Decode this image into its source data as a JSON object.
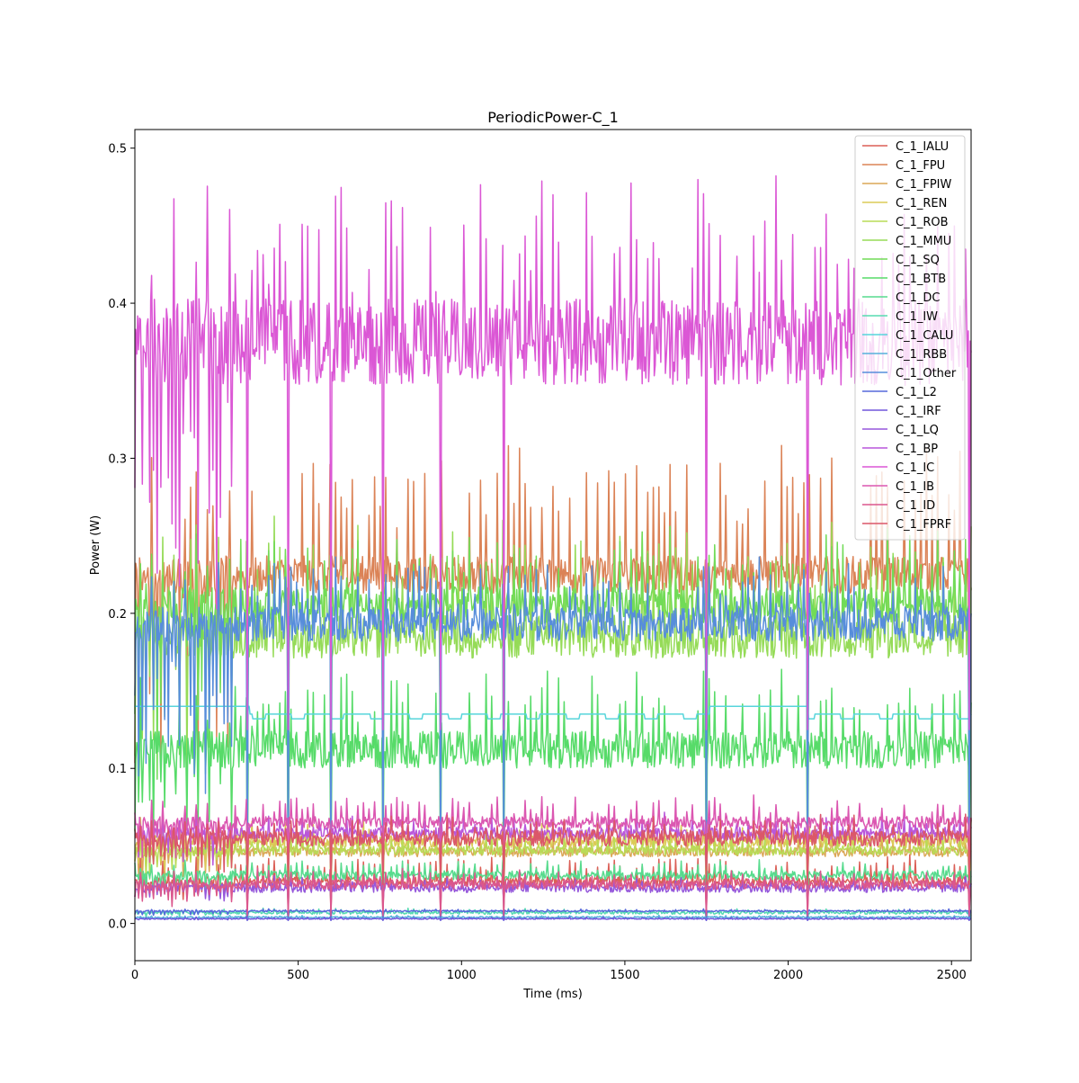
{
  "chart_data": {
    "type": "line",
    "title": "PeriodicPower-C_1",
    "xlabel": "Time (ms)",
    "ylabel": "Power (W)",
    "xlim": [
      0,
      2560
    ],
    "ylim": [
      -0.024,
      0.512
    ],
    "xticks": [
      0,
      500,
      1000,
      1500,
      2000,
      2500
    ],
    "yticks": [
      0.0,
      0.1,
      0.2,
      0.3,
      0.4,
      0.5
    ],
    "xtick_labels": [
      "0",
      "500",
      "1000",
      "1500",
      "2000",
      "2500"
    ],
    "ytick_labels": [
      "0.0",
      "0.1",
      "0.2",
      "0.3",
      "0.4",
      "0.5"
    ],
    "grid": false,
    "legend_position": "top-right",
    "series": [
      {
        "name": "C_1_IALU",
        "color": "#db5f57",
        "base": 0.027,
        "noise": 0.003,
        "spike": 0.015,
        "drop": 0.02
      },
      {
        "name": "C_1_FPU",
        "color": "#db8357",
        "base": 0.225,
        "noise": 0.012,
        "spike": 0.075,
        "drop": 0.2
      },
      {
        "name": "C_1_FPIW",
        "color": "#dba757",
        "base": 0.046,
        "noise": 0.003,
        "spike": 0.01,
        "drop": 0.03
      },
      {
        "name": "C_1_REN",
        "color": "#dbcb57",
        "base": 0.053,
        "noise": 0.004,
        "spike": 0.012,
        "drop": 0.03
      },
      {
        "name": "C_1_ROB",
        "color": "#b9db57",
        "base": 0.047,
        "noise": 0.003,
        "spike": 0.01,
        "drop": 0.03
      },
      {
        "name": "C_1_MMU",
        "color": "#95db57",
        "base": 0.185,
        "noise": 0.014,
        "spike": 0.065,
        "drop": 0.16
      },
      {
        "name": "C_1_SQ",
        "color": "#71db57",
        "base": 0.205,
        "noise": 0.012,
        "spike": 0.04,
        "drop": 0.18
      },
      {
        "name": "C_1_BTB",
        "color": "#57db69",
        "base": 0.112,
        "noise": 0.012,
        "spike": 0.045,
        "drop": 0.09
      },
      {
        "name": "C_1_DC",
        "color": "#57db8d",
        "base": 0.031,
        "noise": 0.003,
        "spike": 0.008,
        "drop": 0.02
      },
      {
        "name": "C_1_IW",
        "color": "#57dbb1",
        "base": 0.007,
        "noise": 0.001,
        "spike": 0.002,
        "drop": 0.004
      },
      {
        "name": "C_1_CALU",
        "color": "#57d5db",
        "base": 0.135,
        "noise": 0.0,
        "spike": 0.0,
        "drop": 0.0,
        "step": true
      },
      {
        "name": "C_1_RBB",
        "color": "#57b1db",
        "base": 0.004,
        "noise": 0.0005,
        "spike": 0.001,
        "drop": 0.002
      },
      {
        "name": "C_1_Other",
        "color": "#578ddb",
        "base": 0.193,
        "noise": 0.011,
        "spike": 0.035,
        "drop": 0.17
      },
      {
        "name": "C_1_L2",
        "color": "#5769db",
        "base": 0.008,
        "noise": 0.0005,
        "spike": 0.001,
        "drop": 0.004
      },
      {
        "name": "C_1_IRF",
        "color": "#7157db",
        "base": 0.003,
        "noise": 0.0003,
        "spike": 0.001,
        "drop": 0.001
      },
      {
        "name": "C_1_LQ",
        "color": "#9557db",
        "base": 0.023,
        "noise": 0.003,
        "spike": 0.005,
        "drop": 0.01
      },
      {
        "name": "C_1_BP",
        "color": "#b957db",
        "base": 0.058,
        "noise": 0.004,
        "spike": 0.01,
        "drop": 0.03
      },
      {
        "name": "C_1_IC",
        "color": "#db57d5",
        "base": 0.375,
        "noise": 0.028,
        "spike": 0.09,
        "drop": 0.25
      },
      {
        "name": "C_1_IB",
        "color": "#db57b1",
        "base": 0.065,
        "noise": 0.004,
        "spike": 0.015,
        "drop": 0.04
      },
      {
        "name": "C_1_ID",
        "color": "#db578d",
        "base": 0.025,
        "noise": 0.003,
        "spike": 0.008,
        "drop": 0.02
      },
      {
        "name": "C_1_FPRF",
        "color": "#db5769",
        "base": 0.055,
        "noise": 0.005,
        "spike": 0.012,
        "drop": 0.03
      }
    ],
    "legend_entries": [
      {
        "label": "C_1_IALU",
        "color": "#db5f57"
      },
      {
        "label": "C_1_FPU",
        "color": "#db8357"
      },
      {
        "label": "C_1_FPIW",
        "color": "#dba757"
      },
      {
        "label": "C_1_REN",
        "color": "#dbcb57"
      },
      {
        "label": "C_1_ROB",
        "color": "#b9db57"
      },
      {
        "label": "C_1_MMU",
        "color": "#95db57"
      },
      {
        "label": "C_1_SQ",
        "color": "#71db57"
      },
      {
        "label": "C_1_BTB",
        "color": "#57db69"
      },
      {
        "label": "C_1_DC",
        "color": "#57db8d"
      },
      {
        "label": "C_1_IW",
        "color": "#57dbb1"
      },
      {
        "label": "C_1_CALU",
        "color": "#57d5db"
      },
      {
        "label": "C_1_RBB",
        "color": "#57b1db"
      },
      {
        "label": "C_1_Other",
        "color": "#578ddb"
      },
      {
        "label": "C_1_L2",
        "color": "#5769db"
      },
      {
        "label": "C_1_IRF",
        "color": "#7157db"
      },
      {
        "label": "C_1_LQ",
        "color": "#9557db"
      },
      {
        "label": "C_1_BP",
        "color": "#b957db"
      },
      {
        "label": "C_1_IC",
        "color": "#db57d5"
      },
      {
        "label": "C_1_IB",
        "color": "#db57b1"
      },
      {
        "label": "C_1_ID",
        "color": "#db578d"
      },
      {
        "label": "C_1_FPRF",
        "color": "#db5769"
      }
    ]
  }
}
